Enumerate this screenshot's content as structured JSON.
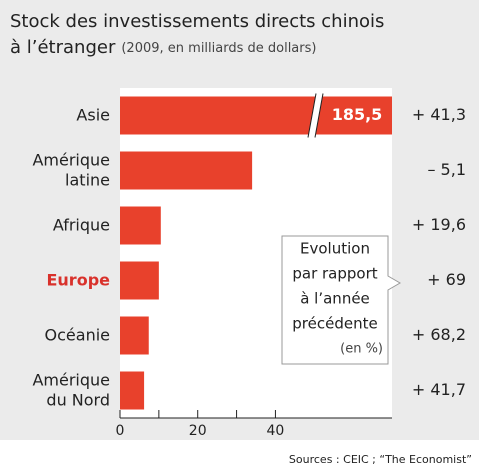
{
  "chart_data": {
    "type": "bar",
    "orientation": "horizontal",
    "title_lines": [
      "Stock des investissements directs chinois",
      "à l’étranger"
    ],
    "subtitle": "(2009, en milliards de dollars)",
    "categories": [
      "Asie",
      "Amérique\nlatine",
      "Afrique",
      "Europe",
      "Océanie",
      "Amérique\ndu Nord"
    ],
    "highlight_category": "Europe",
    "values": [
      185.5,
      34,
      10.5,
      10,
      7.4,
      6.2
    ],
    "value_labels": [
      "185,5",
      null,
      null,
      null,
      null,
      null
    ],
    "color": "#e8412c",
    "highlight_color": "#d9312b",
    "evolution_labels": [
      "+ 41,3",
      "– 5,1",
      "+ 19,6",
      "+ 69",
      "+ 68,2",
      "+ 41,7"
    ],
    "annotation_lines": [
      "Evolution",
      "par rapport",
      "à l’année",
      "précédente",
      "(en %)"
    ],
    "xlim": [
      0,
      70
    ],
    "xticks": [
      0,
      20,
      40
    ],
    "minor_xticks": [
      10,
      30
    ],
    "axis_break": true,
    "source": "Sources : CEIC ; “The Economist”"
  }
}
